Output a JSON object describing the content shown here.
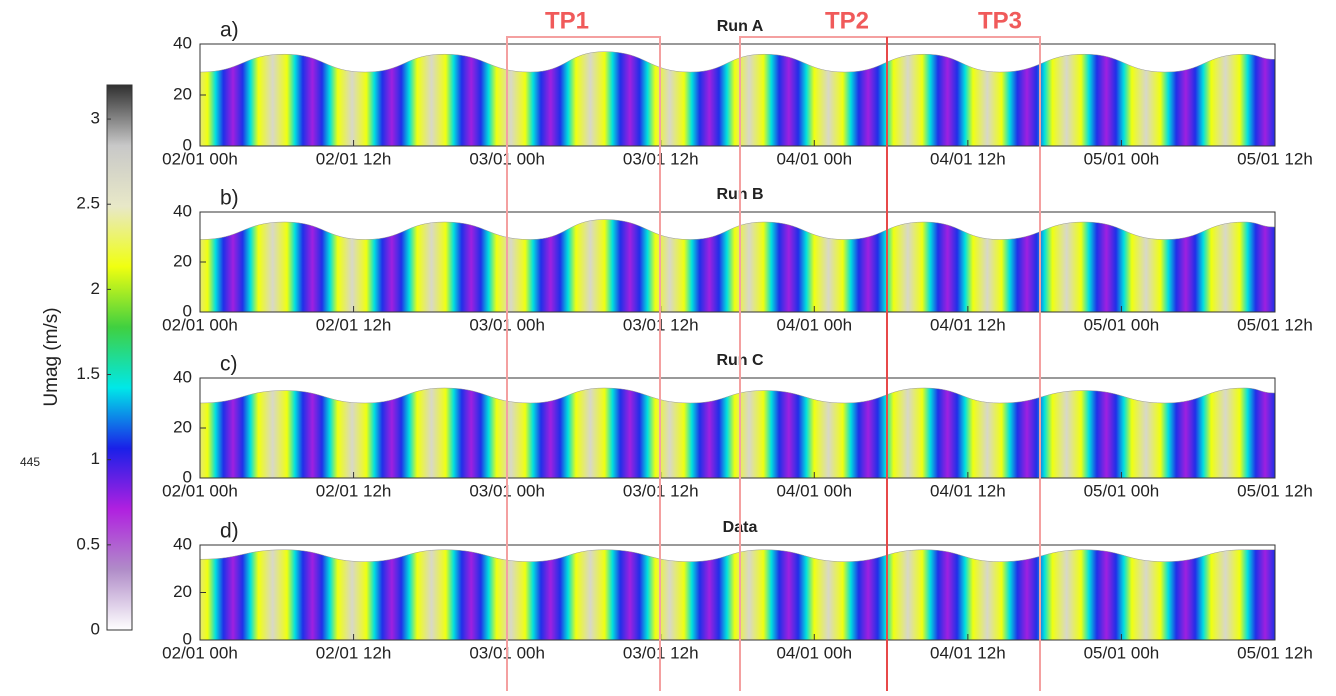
{
  "side_label": "445",
  "annotations": [
    "TP1",
    "TP2",
    "TP3"
  ],
  "colorbar": {
    "label": "Umag (m/s)",
    "lim": [
      0,
      3.2
    ],
    "ticks": [
      0,
      0.5,
      1,
      1.5,
      2,
      2.5,
      3
    ],
    "colormap": [
      "#ffffff",
      "#b08cc8",
      "#b020e0",
      "#1a20e8",
      "#00e8e8",
      "#40d040",
      "#f0ff10",
      "#e8e8c8",
      "#c8c8c8",
      "#303030"
    ]
  },
  "chart_data": [
    {
      "type": "area",
      "panel_label": "a)",
      "title": "Run A",
      "x": [
        0,
        6.6,
        12.9,
        19.1,
        25.8,
        31.6,
        38.3,
        44.1,
        50.4,
        56.6,
        62.5,
        69.1,
        75.4,
        81.6,
        84
      ],
      "values": [
        29,
        36,
        29,
        36,
        29,
        37,
        29,
        36,
        29,
        36,
        29,
        36,
        29,
        36,
        34
      ],
      "xlim": [
        0,
        84
      ],
      "ylim": [
        0,
        40
      ],
      "yticks": [
        0,
        20,
        40
      ],
      "xticks": [
        {
          "value": 0,
          "label": "02/01 00h"
        },
        {
          "value": 12,
          "label": "02/01 12h"
        },
        {
          "value": 24,
          "label": "03/01 00h"
        },
        {
          "value": 36,
          "label": "03/01 12h"
        },
        {
          "value": 48,
          "label": "04/01 00h"
        },
        {
          "value": 60,
          "label": "04/01 12h"
        },
        {
          "value": 72,
          "label": "05/01 00h"
        },
        {
          "value": 84,
          "label": "05/01 12h"
        }
      ]
    },
    {
      "type": "area",
      "panel_label": "b)",
      "title": "Run B",
      "x": [
        0,
        6.6,
        12.9,
        19.1,
        25.8,
        31.6,
        38.3,
        44.1,
        50.4,
        56.6,
        62.5,
        69.1,
        75.4,
        81.6,
        84
      ],
      "values": [
        29,
        36,
        29,
        36,
        29,
        37,
        29,
        36,
        29,
        36,
        29,
        36,
        29,
        36,
        34
      ],
      "xlim": [
        0,
        84
      ],
      "ylim": [
        0,
        40
      ],
      "yticks": [
        0,
        20,
        40
      ],
      "xticks": [
        {
          "value": 0,
          "label": "02/01 00h"
        },
        {
          "value": 12,
          "label": "02/01 12h"
        },
        {
          "value": 24,
          "label": "03/01 00h"
        },
        {
          "value": 36,
          "label": "03/01 12h"
        },
        {
          "value": 48,
          "label": "04/01 00h"
        },
        {
          "value": 60,
          "label": "04/01 12h"
        },
        {
          "value": 72,
          "label": "05/01 00h"
        },
        {
          "value": 84,
          "label": "05/01 12h"
        }
      ]
    },
    {
      "type": "area",
      "panel_label": "c)",
      "title": "Run C",
      "x": [
        0,
        6.6,
        12.9,
        19.1,
        25.8,
        31.6,
        38.3,
        44.1,
        50.4,
        56.6,
        62.5,
        69.1,
        75.4,
        81.6,
        84
      ],
      "values": [
        30,
        35,
        30,
        36,
        30,
        36,
        30,
        35,
        30,
        36,
        30,
        35,
        30,
        36,
        34
      ],
      "xlim": [
        0,
        84
      ],
      "ylim": [
        0,
        40
      ],
      "yticks": [
        0,
        20,
        40
      ],
      "xticks": [
        {
          "value": 0,
          "label": "02/01 00h"
        },
        {
          "value": 12,
          "label": "02/01 12h"
        },
        {
          "value": 24,
          "label": "03/01 00h"
        },
        {
          "value": 36,
          "label": "03/01 12h"
        },
        {
          "value": 48,
          "label": "04/01 00h"
        },
        {
          "value": 60,
          "label": "04/01 12h"
        },
        {
          "value": 72,
          "label": "05/01 00h"
        },
        {
          "value": 84,
          "label": "05/01 12h"
        }
      ]
    },
    {
      "type": "area",
      "panel_label": "d)",
      "title": "Data",
      "x": [
        0,
        6.6,
        12.9,
        19.1,
        25.8,
        31.6,
        38.3,
        44.1,
        50.4,
        56.6,
        62.5,
        69.1,
        75.4,
        81.6,
        84
      ],
      "values": [
        34,
        38,
        33,
        38,
        33,
        38,
        33,
        38,
        33,
        38,
        33,
        38,
        33,
        38,
        38
      ],
      "xlim": [
        0,
        84
      ],
      "ylim": [
        0,
        40
      ],
      "yticks": [
        0,
        20,
        40
      ],
      "xticks": [
        {
          "value": 0,
          "label": "02/01 00h"
        },
        {
          "value": 12,
          "label": "02/01 12h"
        },
        {
          "value": 24,
          "label": "03/01 00h"
        },
        {
          "value": 36,
          "label": "03/01 12h"
        },
        {
          "value": 48,
          "label": "04/01 00h"
        },
        {
          "value": 60,
          "label": "04/01 12h"
        },
        {
          "value": 72,
          "label": "05/01 00h"
        },
        {
          "value": 84,
          "label": "05/01 12h"
        }
      ]
    }
  ]
}
